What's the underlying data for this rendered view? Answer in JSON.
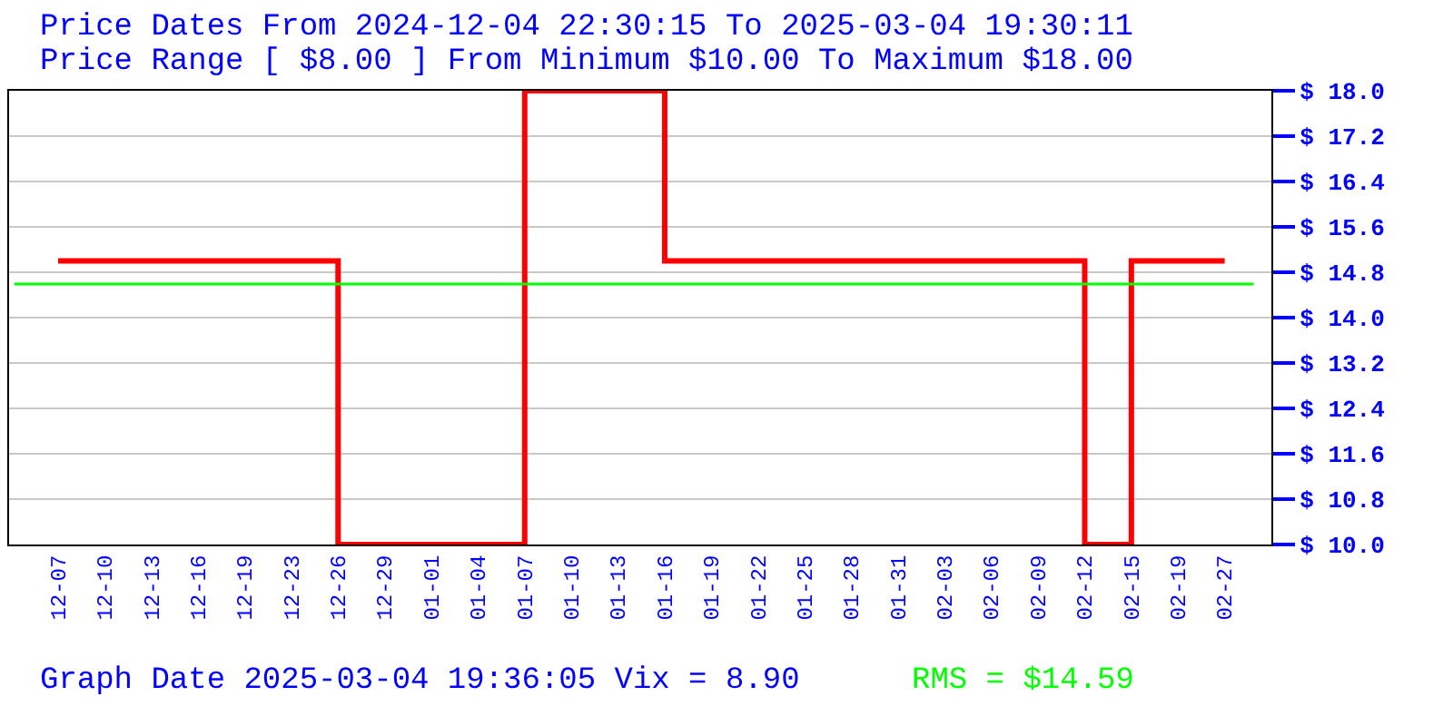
{
  "chart_data": {
    "type": "step",
    "title": "Price Dates From 2024-12-04 22:30:15 To 2025-03-04 19:30:11",
    "subtitle": "Price Range [ $8.00 ] From Minimum $10.00 To Maximum $18.00",
    "annotations": [
      "Graph Date 2025-03-04 19:36:05 Vix = 8.90"
    ],
    "categories": [
      "12-07",
      "12-10",
      "12-13",
      "12-16",
      "12-19",
      "12-23",
      "12-26",
      "12-29",
      "01-01",
      "01-04",
      "01-07",
      "01-10",
      "01-13",
      "01-16",
      "01-19",
      "01-22",
      "01-25",
      "01-28",
      "01-31",
      "02-03",
      "02-06",
      "02-09",
      "02-12",
      "02-15",
      "02-19",
      "02-27"
    ],
    "series": [
      {
        "color": "#ff0000",
        "values": [
          15,
          15,
          15,
          15,
          15,
          15,
          10,
          10,
          10,
          10,
          18,
          18,
          18,
          15,
          15,
          15,
          15,
          15,
          15,
          15,
          15,
          15,
          10,
          15,
          15,
          15
        ]
      }
    ],
    "ylim": [
      10,
      18
    ],
    "yticks": [
      {
        "value": 10,
        "label": "$ 10.0"
      },
      {
        "value": 10.8,
        "label": "$ 10.8"
      },
      {
        "value": 11.6,
        "label": "$ 11.6"
      },
      {
        "value": 12.4,
        "label": "$ 12.4"
      },
      {
        "value": 13.2,
        "label": "$ 13.2"
      },
      {
        "value": 14,
        "label": "$ 14.0"
      },
      {
        "value": 14.8,
        "label": "$ 14.8"
      },
      {
        "value": 15.6,
        "label": "$ 15.6"
      },
      {
        "value": 16.4,
        "label": "$ 16.4"
      },
      {
        "value": 17.2,
        "label": "$ 17.2"
      },
      {
        "value": 18,
        "label": "$ 18.0"
      }
    ],
    "grid": "y",
    "legend": false,
    "ref_lines": [
      {
        "axis": "y",
        "value": 14.59,
        "label": "RMS = $14.59",
        "color": "#00ff00"
      }
    ]
  }
}
